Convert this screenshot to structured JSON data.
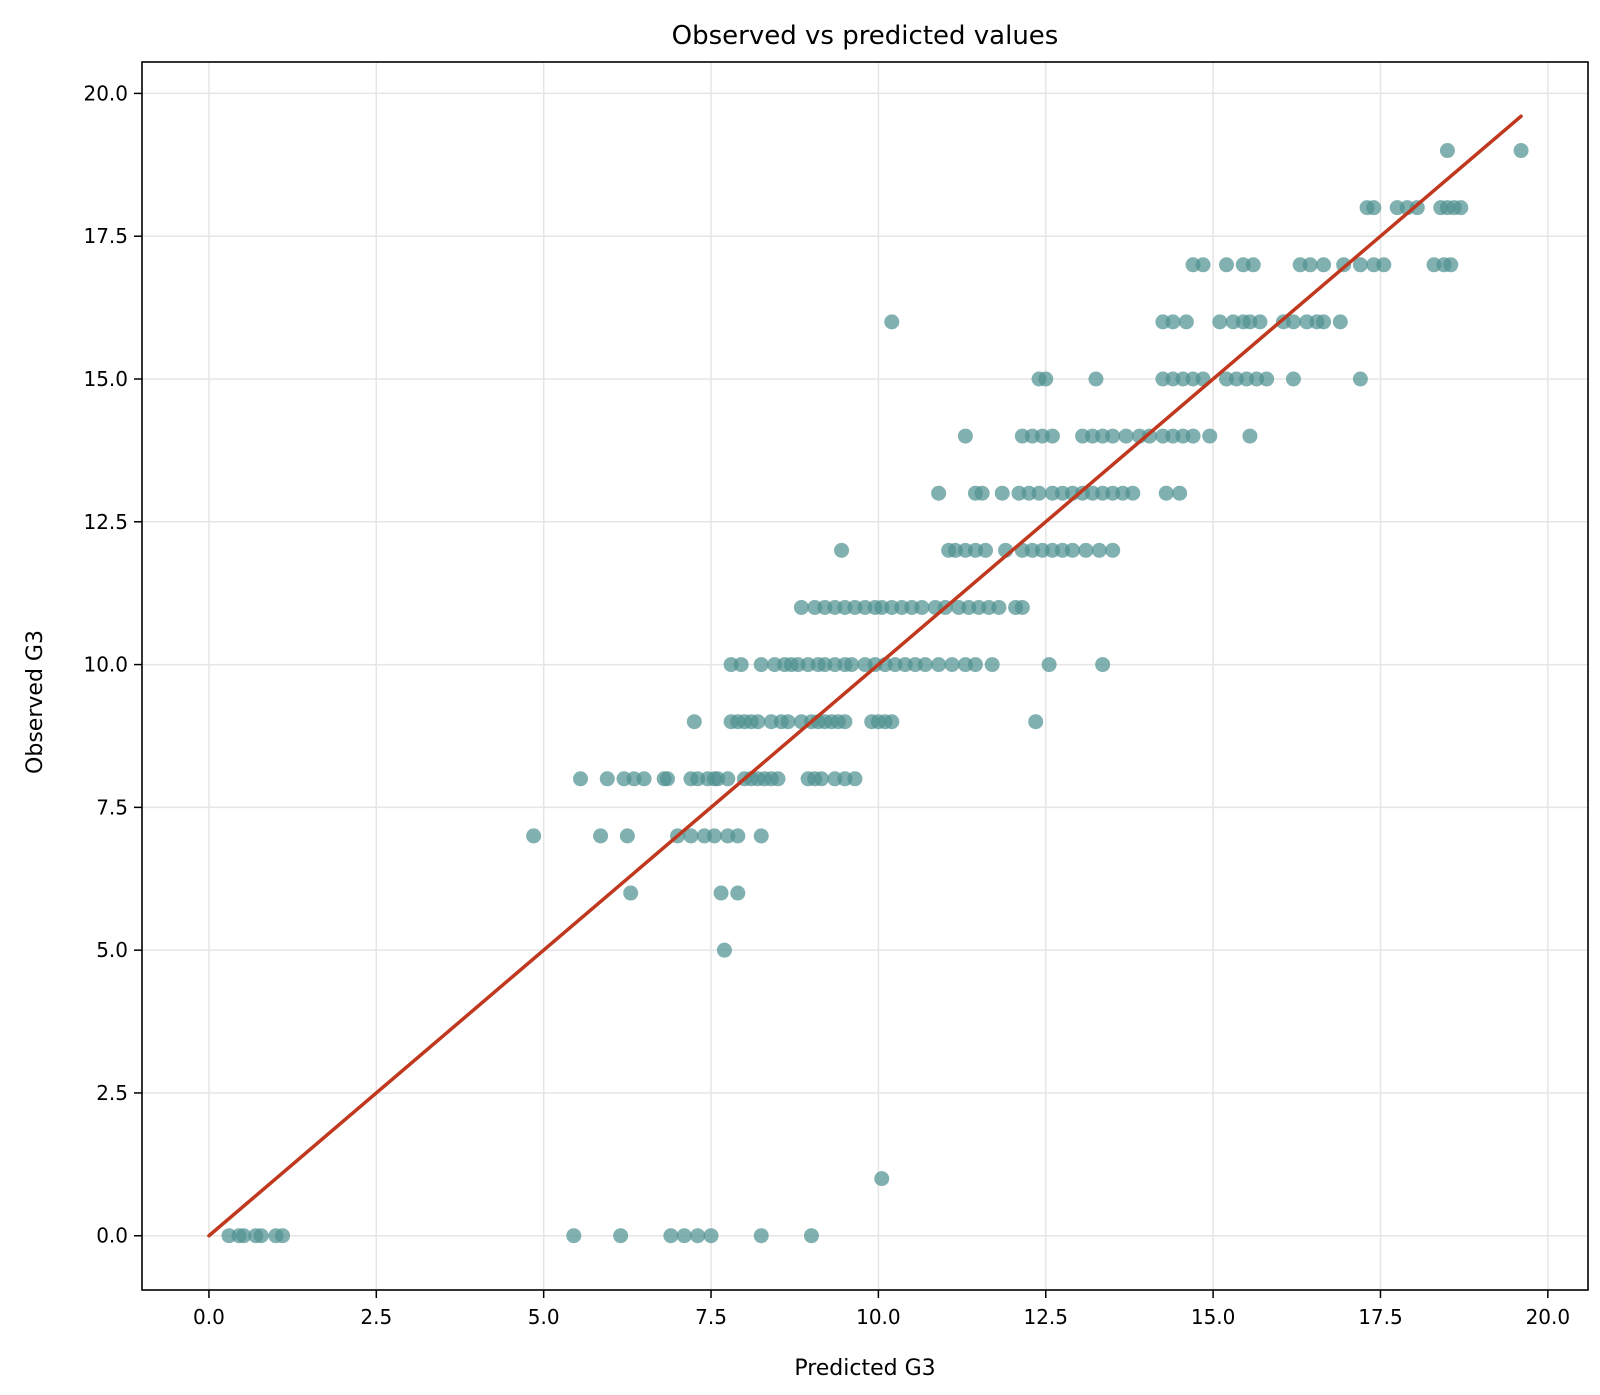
{
  "chart_data": {
    "type": "scatter",
    "title": "Observed vs predicted values",
    "xlabel": "Predicted G3",
    "ylabel": "Observed G3",
    "xlim": [
      -1.0,
      20.6
    ],
    "ylim": [
      -0.95,
      20.55
    ],
    "xticks": [
      "0.0",
      "2.5",
      "5.0",
      "7.5",
      "10.0",
      "12.5",
      "15.0",
      "17.5",
      "20.0"
    ],
    "yticks": [
      "0.0",
      "2.5",
      "5.0",
      "7.5",
      "10.0",
      "12.5",
      "15.0",
      "17.5",
      "20.0"
    ],
    "grid": true,
    "colors": {
      "points": "#4f9190",
      "reference_line": "#c0391f",
      "grid": "#e5e5e5",
      "axes": "#000000"
    },
    "reference_line": {
      "x": [
        0.0,
        19.6
      ],
      "y": [
        0.0,
        19.6
      ]
    },
    "series": [
      {
        "points": [
          [
            0.3,
            0
          ],
          [
            0.45,
            0
          ],
          [
            0.52,
            0
          ],
          [
            0.7,
            0
          ],
          [
            0.78,
            0
          ],
          [
            1.0,
            0
          ],
          [
            1.1,
            0
          ],
          [
            5.45,
            0
          ],
          [
            6.15,
            0
          ],
          [
            6.9,
            0
          ],
          [
            7.1,
            0
          ],
          [
            7.3,
            0
          ],
          [
            7.5,
            0
          ],
          [
            8.25,
            0
          ],
          [
            9.0,
            0
          ],
          [
            10.05,
            1
          ],
          [
            7.7,
            5
          ],
          [
            6.3,
            6
          ],
          [
            7.65,
            6
          ],
          [
            7.9,
            6
          ],
          [
            4.85,
            7
          ],
          [
            5.85,
            7
          ],
          [
            6.25,
            7
          ],
          [
            7.0,
            7
          ],
          [
            7.2,
            7
          ],
          [
            7.4,
            7
          ],
          [
            7.55,
            7
          ],
          [
            7.75,
            7
          ],
          [
            7.9,
            7
          ],
          [
            8.25,
            7
          ],
          [
            5.55,
            8
          ],
          [
            5.95,
            8
          ],
          [
            6.2,
            8
          ],
          [
            6.35,
            8
          ],
          [
            6.5,
            8
          ],
          [
            6.8,
            8
          ],
          [
            6.85,
            8
          ],
          [
            7.2,
            8
          ],
          [
            7.3,
            8
          ],
          [
            7.45,
            8
          ],
          [
            7.55,
            8
          ],
          [
            7.6,
            8
          ],
          [
            7.75,
            8
          ],
          [
            8.0,
            8
          ],
          [
            8.1,
            8
          ],
          [
            8.2,
            8
          ],
          [
            8.3,
            8
          ],
          [
            8.4,
            8
          ],
          [
            8.5,
            8
          ],
          [
            8.95,
            8
          ],
          [
            9.05,
            8
          ],
          [
            9.15,
            8
          ],
          [
            9.35,
            8
          ],
          [
            9.5,
            8
          ],
          [
            9.65,
            8
          ],
          [
            7.25,
            9
          ],
          [
            7.8,
            9
          ],
          [
            7.9,
            9
          ],
          [
            8.0,
            9
          ],
          [
            8.1,
            9
          ],
          [
            8.2,
            9
          ],
          [
            8.4,
            9
          ],
          [
            8.55,
            9
          ],
          [
            8.65,
            9
          ],
          [
            8.85,
            9
          ],
          [
            9.0,
            9
          ],
          [
            9.1,
            9
          ],
          [
            9.2,
            9
          ],
          [
            9.3,
            9
          ],
          [
            9.4,
            9
          ],
          [
            9.5,
            9
          ],
          [
            9.9,
            9
          ],
          [
            10.0,
            9
          ],
          [
            10.1,
            9
          ],
          [
            10.2,
            9
          ],
          [
            12.35,
            9
          ],
          [
            7.8,
            10
          ],
          [
            7.95,
            10
          ],
          [
            8.25,
            10
          ],
          [
            8.45,
            10
          ],
          [
            8.6,
            10
          ],
          [
            8.7,
            10
          ],
          [
            8.8,
            10
          ],
          [
            8.95,
            10
          ],
          [
            9.1,
            10
          ],
          [
            9.2,
            10
          ],
          [
            9.35,
            10
          ],
          [
            9.5,
            10
          ],
          [
            9.6,
            10
          ],
          [
            9.8,
            10
          ],
          [
            9.95,
            10
          ],
          [
            10.1,
            10
          ],
          [
            10.25,
            10
          ],
          [
            10.4,
            10
          ],
          [
            10.55,
            10
          ],
          [
            10.7,
            10
          ],
          [
            10.9,
            10
          ],
          [
            11.1,
            10
          ],
          [
            11.3,
            10
          ],
          [
            11.45,
            10
          ],
          [
            11.7,
            10
          ],
          [
            12.55,
            10
          ],
          [
            13.35,
            10
          ],
          [
            8.85,
            11
          ],
          [
            9.05,
            11
          ],
          [
            9.2,
            11
          ],
          [
            9.35,
            11
          ],
          [
            9.5,
            11
          ],
          [
            9.65,
            11
          ],
          [
            9.8,
            11
          ],
          [
            9.95,
            11
          ],
          [
            10.05,
            11
          ],
          [
            10.2,
            11
          ],
          [
            10.35,
            11
          ],
          [
            10.5,
            11
          ],
          [
            10.65,
            11
          ],
          [
            10.85,
            11
          ],
          [
            11.0,
            11
          ],
          [
            11.2,
            11
          ],
          [
            11.35,
            11
          ],
          [
            11.5,
            11
          ],
          [
            11.65,
            11
          ],
          [
            11.8,
            11
          ],
          [
            12.05,
            11
          ],
          [
            12.15,
            11
          ],
          [
            9.45,
            12
          ],
          [
            11.05,
            12
          ],
          [
            11.15,
            12
          ],
          [
            11.3,
            12
          ],
          [
            11.45,
            12
          ],
          [
            11.6,
            12
          ],
          [
            11.9,
            12
          ],
          [
            12.15,
            12
          ],
          [
            12.3,
            12
          ],
          [
            12.45,
            12
          ],
          [
            12.6,
            12
          ],
          [
            12.75,
            12
          ],
          [
            12.9,
            12
          ],
          [
            13.1,
            12
          ],
          [
            13.3,
            12
          ],
          [
            13.5,
            12
          ],
          [
            10.9,
            13
          ],
          [
            11.45,
            13
          ],
          [
            11.55,
            13
          ],
          [
            11.85,
            13
          ],
          [
            12.1,
            13
          ],
          [
            12.25,
            13
          ],
          [
            12.4,
            13
          ],
          [
            12.6,
            13
          ],
          [
            12.75,
            13
          ],
          [
            12.9,
            13
          ],
          [
            13.05,
            13
          ],
          [
            13.2,
            13
          ],
          [
            13.35,
            13
          ],
          [
            13.5,
            13
          ],
          [
            13.65,
            13
          ],
          [
            13.8,
            13
          ],
          [
            14.3,
            13
          ],
          [
            14.5,
            13
          ],
          [
            11.3,
            14
          ],
          [
            12.15,
            14
          ],
          [
            12.3,
            14
          ],
          [
            12.45,
            14
          ],
          [
            12.6,
            14
          ],
          [
            13.05,
            14
          ],
          [
            13.2,
            14
          ],
          [
            13.35,
            14
          ],
          [
            13.5,
            14
          ],
          [
            13.7,
            14
          ],
          [
            13.9,
            14
          ],
          [
            14.05,
            14
          ],
          [
            14.25,
            14
          ],
          [
            14.4,
            14
          ],
          [
            14.55,
            14
          ],
          [
            14.7,
            14
          ],
          [
            14.95,
            14
          ],
          [
            15.55,
            14
          ],
          [
            12.4,
            15
          ],
          [
            12.5,
            15
          ],
          [
            13.25,
            15
          ],
          [
            14.25,
            15
          ],
          [
            14.4,
            15
          ],
          [
            14.55,
            15
          ],
          [
            14.7,
            15
          ],
          [
            14.85,
            15
          ],
          [
            15.2,
            15
          ],
          [
            15.35,
            15
          ],
          [
            15.5,
            15
          ],
          [
            15.65,
            15
          ],
          [
            15.8,
            15
          ],
          [
            16.2,
            15
          ],
          [
            17.2,
            15
          ],
          [
            10.2,
            16
          ],
          [
            14.25,
            16
          ],
          [
            14.4,
            16
          ],
          [
            14.6,
            16
          ],
          [
            15.1,
            16
          ],
          [
            15.3,
            16
          ],
          [
            15.45,
            16
          ],
          [
            15.55,
            16
          ],
          [
            15.7,
            16
          ],
          [
            16.05,
            16
          ],
          [
            16.2,
            16
          ],
          [
            16.4,
            16
          ],
          [
            16.55,
            16
          ],
          [
            16.65,
            16
          ],
          [
            16.9,
            16
          ],
          [
            14.7,
            17
          ],
          [
            14.85,
            17
          ],
          [
            15.2,
            17
          ],
          [
            15.45,
            17
          ],
          [
            15.6,
            17
          ],
          [
            16.3,
            17
          ],
          [
            16.45,
            17
          ],
          [
            16.65,
            17
          ],
          [
            16.95,
            17
          ],
          [
            17.2,
            17
          ],
          [
            17.4,
            17
          ],
          [
            17.55,
            17
          ],
          [
            18.3,
            17
          ],
          [
            18.45,
            17
          ],
          [
            18.55,
            17
          ],
          [
            17.3,
            18
          ],
          [
            17.4,
            18
          ],
          [
            17.75,
            18
          ],
          [
            17.9,
            18
          ],
          [
            18.05,
            18
          ],
          [
            18.4,
            18
          ],
          [
            18.5,
            18
          ],
          [
            18.6,
            18
          ],
          [
            18.7,
            18
          ],
          [
            18.5,
            19
          ],
          [
            19.6,
            19
          ]
        ]
      }
    ]
  }
}
